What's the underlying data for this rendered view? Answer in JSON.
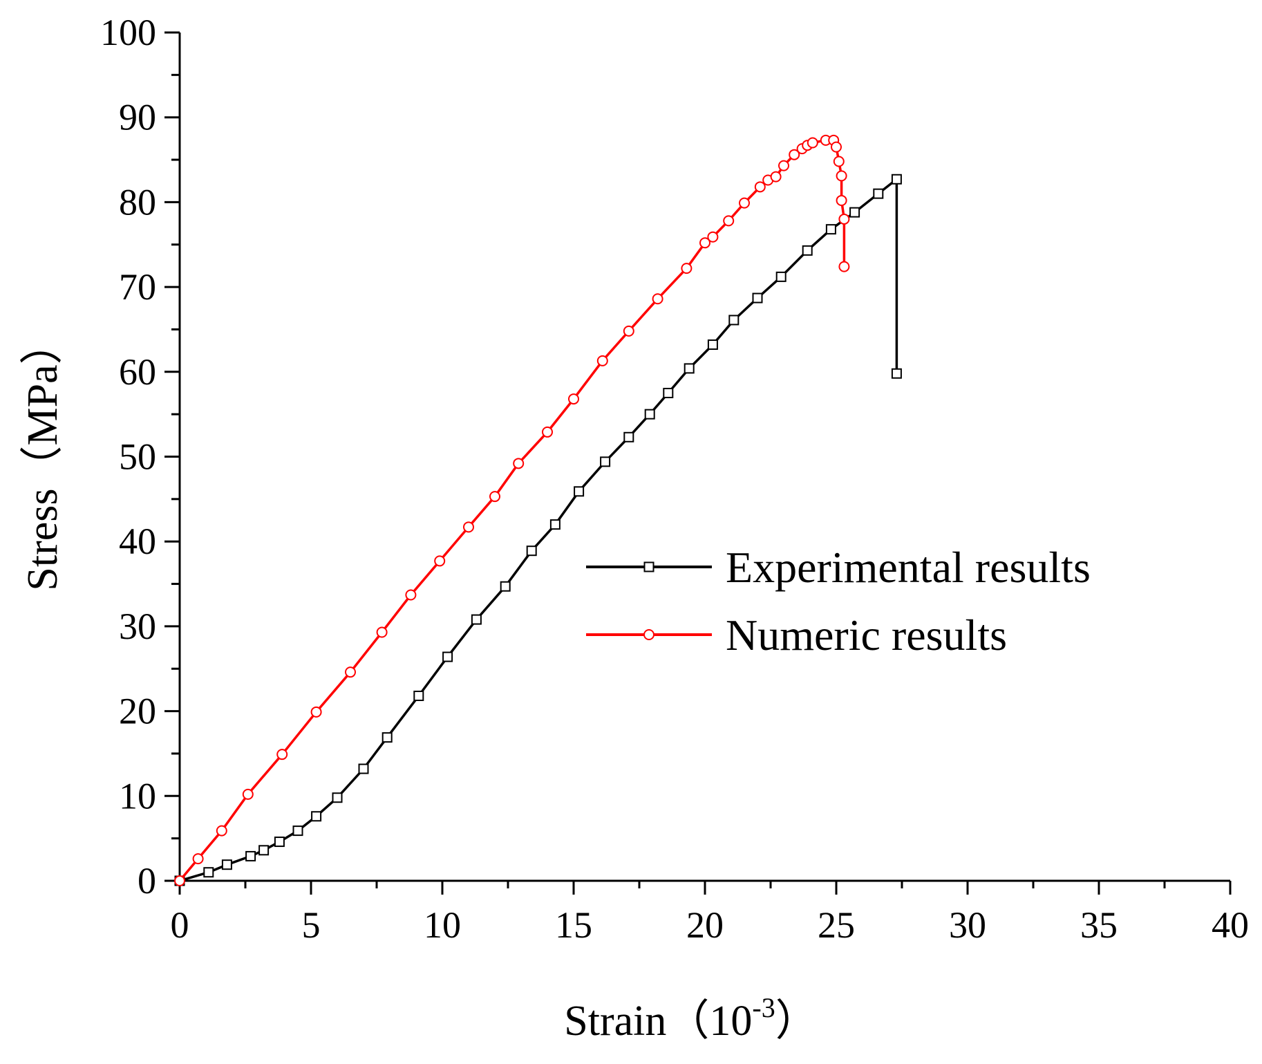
{
  "chart_data": {
    "type": "line",
    "title": "",
    "xlabel": "Strain（10",
    "xlabel_sup": "-3",
    "xlabel_close": "）",
    "ylabel": "Stress（MPa）",
    "xlim": [
      0,
      40
    ],
    "ylim": [
      0,
      100
    ],
    "x_ticks": [
      0,
      5,
      10,
      15,
      20,
      25,
      30,
      35,
      40
    ],
    "x_tick_labels": [
      "0",
      "5",
      "10",
      "15",
      "20",
      "25",
      "30",
      "35",
      "40"
    ],
    "y_ticks": [
      0,
      10,
      20,
      30,
      40,
      50,
      60,
      70,
      80,
      90,
      100
    ],
    "y_tick_labels": [
      "0",
      "10",
      "20",
      "30",
      "40",
      "50",
      "60",
      "70",
      "80",
      "90",
      "100"
    ],
    "grid": false,
    "legend_position": "middle-right",
    "series": [
      {
        "name": "Experimental results",
        "color": "#000000",
        "marker": "square",
        "x": [
          0,
          1.1,
          1.8,
          2.7,
          3.2,
          3.8,
          4.5,
          5.2,
          6.0,
          7.0,
          7.9,
          9.1,
          10.2,
          11.3,
          12.4,
          13.4,
          14.3,
          15.2,
          16.2,
          17.1,
          17.9,
          18.6,
          19.4,
          20.3,
          21.1,
          22.0,
          22.9,
          23.9,
          24.8,
          25.7,
          26.6,
          27.3,
          27.3
        ],
        "y": [
          0,
          1.0,
          1.9,
          2.9,
          3.6,
          4.6,
          5.9,
          7.6,
          9.8,
          13.2,
          16.9,
          21.8,
          26.4,
          30.8,
          34.7,
          38.9,
          42.0,
          45.9,
          49.4,
          52.3,
          55.0,
          57.5,
          60.4,
          63.2,
          66.1,
          68.7,
          71.2,
          74.3,
          76.8,
          78.8,
          81.0,
          82.7,
          59.8
        ]
      },
      {
        "name": "Numeric results",
        "color": "#ff0000",
        "marker": "circle",
        "x": [
          0,
          0.7,
          1.6,
          2.6,
          3.9,
          5.2,
          6.5,
          7.7,
          8.8,
          9.9,
          11.0,
          12.0,
          12.9,
          14.0,
          15.0,
          16.1,
          17.1,
          18.2,
          19.3,
          20.0,
          20.3,
          20.9,
          21.5,
          22.1,
          22.4,
          22.7,
          23.0,
          23.4,
          23.7,
          23.9,
          24.1,
          24.6,
          24.9,
          25.0,
          25.1,
          25.2,
          25.2,
          25.3,
          25.3
        ],
        "y": [
          0,
          2.6,
          5.9,
          10.2,
          14.9,
          19.9,
          24.6,
          29.3,
          33.7,
          37.7,
          41.7,
          45.3,
          49.2,
          52.9,
          56.8,
          61.3,
          64.8,
          68.6,
          72.2,
          75.2,
          75.9,
          77.8,
          79.9,
          81.8,
          82.6,
          83.0,
          84.3,
          85.6,
          86.3,
          86.7,
          87.0,
          87.3,
          87.3,
          86.5,
          84.8,
          83.1,
          80.2,
          78.0,
          72.4
        ]
      }
    ]
  }
}
